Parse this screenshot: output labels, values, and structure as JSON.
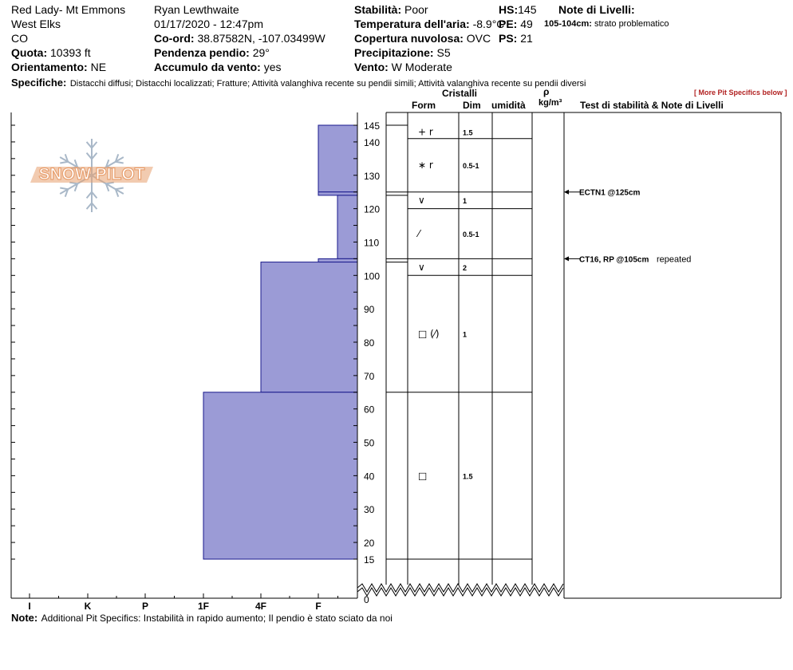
{
  "header": {
    "col1": [
      "Red Lady- Mt Emmons",
      "West Elks",
      "CO"
    ],
    "quota_label": "Quota:",
    "quota_value": "10393 ft",
    "orient_label": "Orientamento:",
    "orient_value": "NE",
    "observer": "Ryan Lewthwaite",
    "datetime": "01/17/2020 - 12:47pm",
    "coord_label": "Co-ord:",
    "coord_value": "38.87582N, -107.03499W",
    "slope_label": "Pendenza pendio:",
    "slope_value": "29°",
    "wind_load_label": "Accumulo da vento:",
    "wind_load_value": "yes",
    "stability_label": "Stabilità:",
    "stability_value": "Poor",
    "air_temp_label": "Temperatura dell'aria:",
    "air_temp_value": "-8.9°C",
    "cloud_label": "Copertura nuvolosa:",
    "cloud_value": "OVC",
    "precip_label": "Precipitazione:",
    "precip_value": "S5",
    "wind_label": "Vento:",
    "wind_value": "W Moderate",
    "hs_label": "HS:",
    "hs_value": "145",
    "pe_label": "PE:",
    "pe_value": "49",
    "ps_label": "PS:",
    "ps_value": "21",
    "layer_notes_label": "Note di Livelli:",
    "layer_note_depth": "105-104cm:",
    "layer_note_text": "strato problematico",
    "specifics_label": "Specifiche:",
    "specifics_text": "Distacchi diffusi;  Distacchi localizzati;  Fratture;  Attività valanghiva recente su pendii simili;  Attività valanghiva recente su pendii diversi",
    "more_specifics": "[ More Pit Specifics below ]"
  },
  "columns": {
    "crystals": "Cristalli",
    "form": "Form",
    "size": "Dim",
    "moisture": "umidità",
    "rho": "ρ",
    "density_unit": "kg/m³",
    "tests": "Test di stabilità & Note di Livelli"
  },
  "logo_text": "SNOW PILOT",
  "footer": {
    "note_label": "Note:",
    "note_text": "Additional Pit Specifics: Instabilità in rapido aumento; Il pendio è stato sciato da noi"
  },
  "colors": {
    "hardness_fill": "#9b9bd6",
    "hardness_stroke": "#1a1a8c",
    "logo": "#e8a070",
    "flake": "#a9b8c8"
  },
  "chart_data": {
    "type": "snow-profile",
    "hardness_scale": [
      "I",
      "K",
      "P",
      "1F",
      "4F",
      "F"
    ],
    "height_ticks": [
      145,
      140,
      130,
      120,
      110,
      100,
      90,
      80,
      70,
      60,
      50,
      40,
      30,
      20,
      15,
      0
    ],
    "ylim": [
      0,
      145
    ],
    "layers": [
      {
        "top": 145,
        "bottom": 125,
        "hardness": "F"
      },
      {
        "top": 125,
        "bottom": 124,
        "hardness": "F"
      },
      {
        "top": 124,
        "bottom": 105,
        "hardness": "F+"
      },
      {
        "top": 105,
        "bottom": 104,
        "hardness": "F"
      },
      {
        "top": 104,
        "bottom": 65,
        "hardness": "4F"
      },
      {
        "top": 65,
        "bottom": 15,
        "hardness": "1F"
      }
    ],
    "grain_rows": [
      {
        "top": 145,
        "bottom": 141,
        "form": "+ r",
        "size": "1.5"
      },
      {
        "top": 141,
        "bottom": 125,
        "form": "∗ r",
        "size": "0.5-1"
      },
      {
        "top": 125,
        "bottom": 120,
        "form": "∨",
        "size": "1"
      },
      {
        "top": 120,
        "bottom": 105,
        "form": "⁄",
        "size": "0.5-1"
      },
      {
        "top": 105,
        "bottom": 100,
        "form": "∨",
        "size": "2"
      },
      {
        "top": 100,
        "bottom": 65,
        "form": "□ (⁄)",
        "size": "1"
      },
      {
        "top": 65,
        "bottom": 15,
        "form": "□",
        "size": "1.5"
      }
    ],
    "tests": [
      {
        "height": 125,
        "label": "ECTN1 @125cm",
        "note": ""
      },
      {
        "height": 105,
        "label": "CT16, RP @105cm",
        "note": "repeated"
      }
    ]
  }
}
